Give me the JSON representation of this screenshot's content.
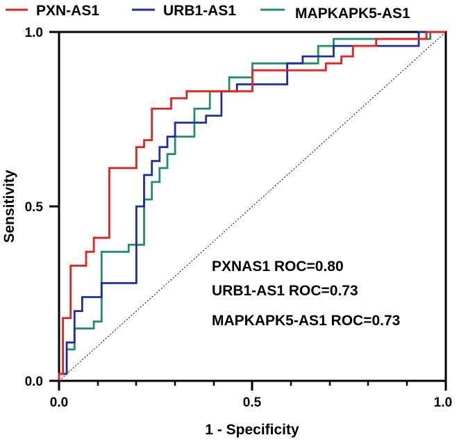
{
  "chart_data": {
    "type": "line",
    "title": "",
    "xlabel": "1 - Specificity",
    "ylabel": "Sensitivity",
    "xlim": [
      0,
      1
    ],
    "ylim": [
      0,
      1
    ],
    "x_ticks": [
      "0.0",
      "0.5",
      "1.0"
    ],
    "y_ticks": [
      "0.0",
      "0.5",
      "1.0"
    ],
    "legend_position": "top",
    "reference_line": {
      "name": "chance",
      "x": [
        0,
        1
      ],
      "y": [
        0,
        1
      ],
      "style": "dotted"
    },
    "series": [
      {
        "name": "PXN-AS1",
        "color": "#e8201f",
        "x": [
          0,
          0,
          0.01,
          0.01,
          0.03,
          0.03,
          0.07,
          0.07,
          0.09,
          0.09,
          0.13,
          0.13,
          0.2,
          0.2,
          0.22,
          0.22,
          0.24,
          0.24,
          0.29,
          0.29,
          0.33,
          0.33,
          0.5,
          0.5,
          0.69,
          0.69,
          0.73,
          0.73,
          0.76,
          0.76,
          0.82,
          0.82,
          0.93,
          0.93,
          0.95,
          0.95,
          1
        ],
        "y": [
          0,
          0.02,
          0.02,
          0.18,
          0.18,
          0.33,
          0.33,
          0.37,
          0.37,
          0.41,
          0.41,
          0.61,
          0.61,
          0.67,
          0.67,
          0.69,
          0.69,
          0.78,
          0.78,
          0.81,
          0.81,
          0.83,
          0.83,
          0.89,
          0.89,
          0.91,
          0.91,
          0.93,
          0.93,
          0.96,
          0.96,
          0.98,
          0.98,
          0.98,
          0.98,
          1,
          1
        ]
      },
      {
        "name": "URB1-AS1",
        "color": "#1c2ea6",
        "x": [
          0,
          0,
          0.02,
          0.02,
          0.04,
          0.04,
          0.06,
          0.06,
          0.11,
          0.11,
          0.2,
          0.2,
          0.22,
          0.22,
          0.24,
          0.24,
          0.26,
          0.26,
          0.28,
          0.28,
          0.3,
          0.3,
          0.38,
          0.38,
          0.42,
          0.42,
          0.46,
          0.46,
          0.59,
          0.59,
          0.63,
          0.63,
          0.71,
          0.71,
          0.93,
          0.93,
          1
        ],
        "y": [
          0,
          0.02,
          0.02,
          0.11,
          0.11,
          0.2,
          0.2,
          0.24,
          0.24,
          0.28,
          0.28,
          0.5,
          0.5,
          0.59,
          0.59,
          0.63,
          0.63,
          0.67,
          0.67,
          0.7,
          0.7,
          0.74,
          0.74,
          0.76,
          0.76,
          0.83,
          0.83,
          0.85,
          0.85,
          0.91,
          0.91,
          0.93,
          0.93,
          0.96,
          0.96,
          1,
          1
        ]
      },
      {
        "name": "MAPKAPK5-AS1",
        "color": "#1f8f68",
        "x": [
          0,
          0,
          0.02,
          0.02,
          0.04,
          0.04,
          0.09,
          0.09,
          0.11,
          0.11,
          0.18,
          0.18,
          0.22,
          0.22,
          0.24,
          0.24,
          0.26,
          0.26,
          0.28,
          0.28,
          0.3,
          0.3,
          0.35,
          0.35,
          0.39,
          0.39,
          0.44,
          0.44,
          0.5,
          0.5,
          0.67,
          0.67,
          0.71,
          0.71,
          0.96,
          0.96,
          1
        ],
        "y": [
          0,
          0.02,
          0.02,
          0.09,
          0.09,
          0.15,
          0.15,
          0.17,
          0.17,
          0.37,
          0.37,
          0.39,
          0.39,
          0.52,
          0.52,
          0.57,
          0.57,
          0.61,
          0.61,
          0.65,
          0.65,
          0.7,
          0.7,
          0.78,
          0.78,
          0.83,
          0.83,
          0.87,
          0.87,
          0.91,
          0.91,
          0.96,
          0.96,
          0.98,
          0.98,
          1,
          1
        ]
      }
    ],
    "annotations": [
      "PXNAS1 ROC=0.80",
      "URB1-AS1 ROC=0.73",
      "MAPKAPK5-AS1 ROC=0.73"
    ]
  }
}
